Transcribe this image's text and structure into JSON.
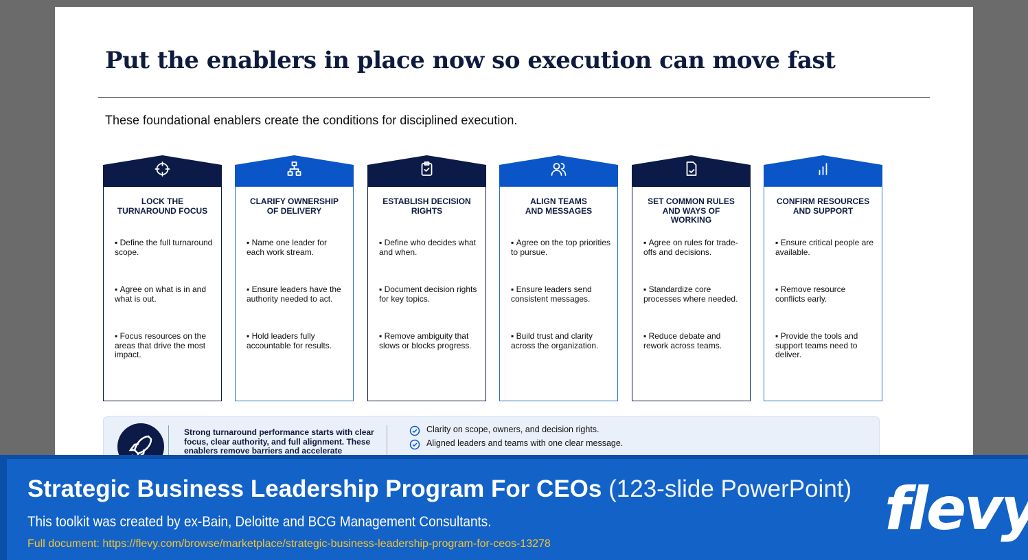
{
  "slide": {
    "title": "Put the enablers in place now so execution can move fast",
    "subtitle": "These foundational enablers create the conditions for disciplined execution.",
    "cards": [
      {
        "title": "LOCK THE\nTURNAROUND FOCUS",
        "bullets": [
          "Define the full turnaround scope.",
          "Agree on what is in and what is out.",
          "Focus resources on the areas that drive the most impact."
        ]
      },
      {
        "title": "CLARIFY OWNERSHIP\nOF DELIVERY",
        "bullets": [
          "Name one leader for each work stream.",
          "Ensure leaders have the authority needed to act.",
          "Hold leaders fully accountable for results."
        ]
      },
      {
        "title": "ESTABLISH DECISION\nRIGHTS",
        "bullets": [
          "Define who decides what and when.",
          "Document decision rights for key topics.",
          "Remove ambiguity that slows or blocks progress."
        ]
      },
      {
        "title": "ALIGN TEAMS\nAND MESSAGES",
        "bullets": [
          "Agree on the top priorities to pursue.",
          "Ensure leaders send consistent messages.",
          "Build trust and clarity across the organization."
        ]
      },
      {
        "title": "SET COMMON RULES\nAND WAYS OF\nWORKING",
        "bullets": [
          "Agree on rules for trade-offs and decisions.",
          "Standardize core processes where needed.",
          "Reduce debate and rework across teams."
        ]
      },
      {
        "title": "CONFIRM RESOURCES\nAND SUPPORT",
        "bullets": [
          "Ensure critical people are available.",
          "Remove resource conflicts early.",
          "Provide the tools and support teams need to deliver."
        ]
      }
    ],
    "summary": {
      "text": "Strong turnaround performance starts with clear focus, clear authority, and full alignment. These enablers remove barriers and accelerate",
      "checks": [
        "Clarity on scope, owners, and decision rights.",
        "Aligned leaders and teams with one clear message."
      ]
    }
  },
  "banner": {
    "title": "Strategic Business Leadership Program For CEOs",
    "title_note": "(123-slide PowerPoint)",
    "description": "This toolkit was created by ex-Bain, Deloitte and BCG Management Consultants.",
    "link": "Full document: https://flevy.com/browse/marketplace/strategic-business-leadership-program-for-ceos-13278",
    "logo": "flevy"
  }
}
